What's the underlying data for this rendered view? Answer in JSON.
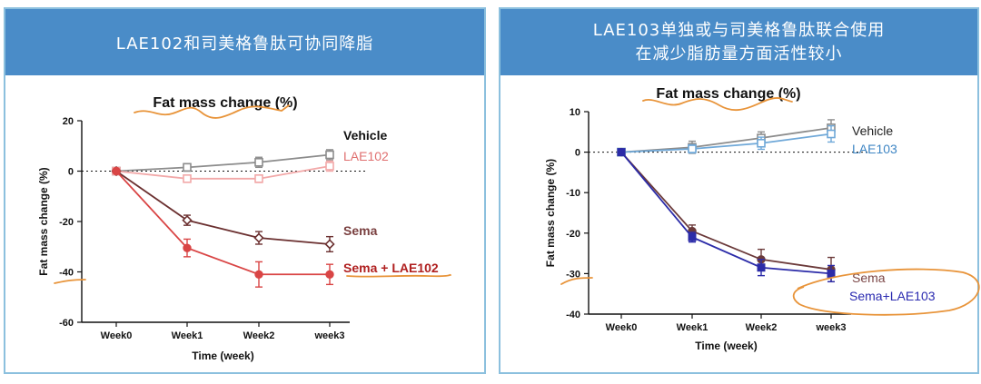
{
  "left_panel": {
    "banner_title": "LAE102和司美格鲁肽可协同降脂"
  },
  "right_panel": {
    "banner_line1": "LAE103单独或与司美格鲁肽联合使用",
    "banner_line2": "在减少脂肪量方面活性较小"
  },
  "colors": {
    "banner_bg": "#4a8cc8",
    "border": "#8cc0de",
    "annotation": "#e8943a"
  },
  "chart_data": [
    {
      "type": "line",
      "title": "Fat mass change (%)",
      "xlabel": "Time (week)",
      "ylabel": "Fat mass change (%)",
      "categories": [
        "Week0",
        "Week1",
        "Week2",
        "week3"
      ],
      "ylim": [
        -60,
        20
      ],
      "yticks": [
        "20",
        "0",
        "-20",
        "-40",
        "-60"
      ],
      "reference_line": 0,
      "series": [
        {
          "name": "Vehicle",
          "color": "#8c8c8c",
          "label_color": "#111111",
          "marker": "square-open",
          "values": [
            0,
            1.5,
            3.5,
            6.5
          ],
          "errors": [
            0,
            1.5,
            2,
            2
          ]
        },
        {
          "name": "LAE102",
          "color": "#f2a8a8",
          "label_color": "#e07070",
          "marker": "square-open",
          "values": [
            0,
            -3,
            -3,
            2
          ],
          "errors": [
            0,
            1,
            1.5,
            2
          ]
        },
        {
          "name": "Sema",
          "color": "#6b3030",
          "label_color": "#7a4040",
          "marker": "diamond-open",
          "values": [
            0,
            -19.5,
            -26.5,
            -29
          ],
          "errors": [
            0,
            2,
            2.5,
            3
          ]
        },
        {
          "name": "Sema + LAE102",
          "color": "#d94545",
          "label_color": "#b02020",
          "marker": "circle",
          "values": [
            0,
            -30.5,
            -41,
            -41
          ],
          "errors": [
            0,
            3.5,
            5,
            4
          ]
        }
      ]
    },
    {
      "type": "line",
      "title": "Fat mass change (%)",
      "xlabel": "Time (week)",
      "ylabel": "Fat mass change (%)",
      "categories": [
        "Week0",
        "Week1",
        "Week2",
        "week3"
      ],
      "ylim": [
        -40,
        10
      ],
      "yticks": [
        "10",
        "0",
        "-10",
        "-20",
        "-30",
        "-40"
      ],
      "reference_line": 0,
      "series": [
        {
          "name": "Vehicle",
          "color": "#8c8c8c",
          "label_color": "#222222",
          "marker": "square-open",
          "values": [
            0,
            1.2,
            3.5,
            6
          ],
          "errors": [
            0,
            1.5,
            1.5,
            2
          ]
        },
        {
          "name": "LAE103",
          "color": "#6fa8d8",
          "label_color": "#3f86c4",
          "marker": "square-open",
          "values": [
            0,
            0.8,
            2.2,
            4.5
          ],
          "errors": [
            0,
            1,
            1.5,
            2
          ]
        },
        {
          "name": "Sema",
          "color": "#6b3a3a",
          "label_color": "#7a4545",
          "marker": "circle",
          "values": [
            0,
            -19.5,
            -26.5,
            -29
          ],
          "errors": [
            0,
            1.5,
            2.5,
            3
          ]
        },
        {
          "name": "Sema+LAE103",
          "color": "#2b2ba8",
          "label_color": "#2a2ab0",
          "marker": "square",
          "values": [
            0,
            -21,
            -28.5,
            -30
          ],
          "errors": [
            0,
            1.2,
            2,
            2
          ]
        }
      ]
    }
  ]
}
